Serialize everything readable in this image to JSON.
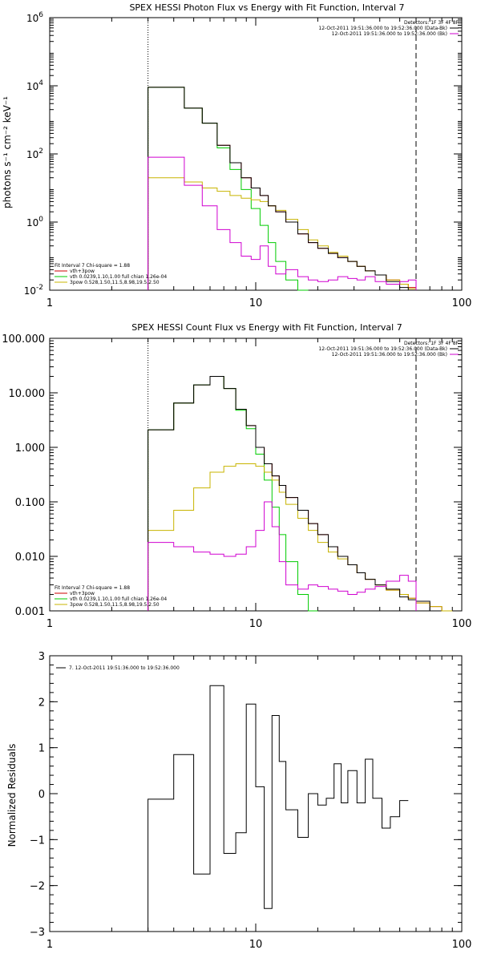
{
  "chart_data": [
    {
      "type": "line",
      "title": "SPEX HESSI Photon Flux vs Energy with Fit Function, Interval 7",
      "ylabel": "photons s⁻¹ cm⁻² keV⁻¹",
      "xlabel": "",
      "xscale": "log",
      "yscale": "log",
      "xlim": [
        1,
        100
      ],
      "ylim": [
        0.01,
        1000000
      ],
      "x_ticks": [
        {
          "value": 1,
          "label": "1"
        },
        {
          "value": 10,
          "label": "10"
        },
        {
          "value": 100,
          "label": "100"
        }
      ],
      "y_ticks": [
        {
          "value": 0.01,
          "base": "10",
          "exp": "-2"
        },
        {
          "value": 1,
          "base": "10",
          "exp": "0"
        },
        {
          "value": 100,
          "base": "10",
          "exp": "2"
        },
        {
          "value": 10000,
          "base": "10",
          "exp": "4"
        },
        {
          "value": 1000000,
          "base": "10",
          "exp": "6"
        }
      ],
      "vlines": [
        {
          "x": 3,
          "style": "dotted"
        },
        {
          "x": 60,
          "style": "dashed"
        }
      ],
      "legend_top": {
        "placement": "top-right",
        "header": "Detectors: 1F 3F 4F 8F",
        "entries": [
          {
            "label": "12-Oct-2011 19:51:36.000 to 19:52:36.000 (Data-Bk)",
            "color": "#000000"
          },
          {
            "label": "12-Oct-2011 19:51:36.000 to 19:52:36.000 (Bk)",
            "color": "#d000d0"
          }
        ]
      },
      "legend_fit": {
        "placement": "bottom-left",
        "header": "Fit Interval  7    Chi-square = 1.88",
        "entries": [
          {
            "label": "vth+3pow",
            "color": "#cc0000"
          },
          {
            "label": "vth 0.0239,1.10,1.00  full chian 1.26e-04",
            "color": "#00cc00"
          },
          {
            "label": "3pow 0.528,1.50,11.5,8.98,19.5,2.50",
            "color": "#c8b400"
          }
        ]
      },
      "edges": [
        3,
        3.5,
        4.5,
        5.5,
        6.5,
        7.5,
        8.5,
        9.5,
        10.5,
        11.5,
        12.5,
        14,
        16,
        18,
        20,
        22.5,
        25,
        28,
        31,
        34,
        38,
        43,
        50,
        55,
        60
      ],
      "series": [
        {
          "name": "vth+3pow",
          "color": "#cc0000",
          "values": [
            9000,
            9000,
            2200,
            800,
            180,
            55,
            20,
            10,
            6,
            3,
            2,
            1,
            0.45,
            0.25,
            0.17,
            0.12,
            0.09,
            0.07,
            0.05,
            0.037,
            0.028,
            0.02,
            0.015,
            0.012
          ]
        },
        {
          "name": "vth",
          "color": "#00cc00",
          "values": [
            9000,
            9000,
            2200,
            800,
            150,
            35,
            9,
            2.5,
            0.8,
            0.25,
            0.07,
            0.02,
            0.006
          ]
        },
        {
          "name": "3pow",
          "color": "#c8b400",
          "values": [
            20,
            20,
            15,
            10,
            8,
            6,
            5,
            4.5,
            4,
            3,
            2.2,
            1.2,
            0.6,
            0.3,
            0.2,
            0.13,
            0.1,
            0.07,
            0.05,
            0.037,
            0.028,
            0.02,
            0.015,
            0.011,
            0.0075
          ]
        },
        {
          "name": "Data-Bk",
          "color": "#000000",
          "values": [
            9000,
            9000,
            2200,
            800,
            180,
            55,
            20,
            10,
            6,
            3,
            2,
            1,
            0.45,
            0.25,
            0.17,
            0.12,
            0.09,
            0.07,
            0.05,
            0.037,
            0.028,
            0.018,
            0.012,
            0.009
          ]
        },
        {
          "name": "Bk",
          "color": "#d000d0",
          "values": [
            80,
            80,
            12,
            3,
            0.6,
            0.25,
            0.1,
            0.08,
            0.2,
            0.05,
            0.03,
            0.04,
            0.025,
            0.02,
            0.018,
            0.02,
            0.025,
            0.022,
            0.02,
            0.025,
            0.018,
            0.015,
            0.018,
            0.02
          ]
        }
      ]
    },
    {
      "type": "line",
      "title": "SPEX HESSI Count Flux vs Energy with Fit Function, Interval 7",
      "ylabel": "",
      "xlabel": "",
      "xscale": "log",
      "yscale": "log",
      "xlim": [
        1,
        100
      ],
      "ylim": [
        0.001,
        100
      ],
      "x_ticks": [
        {
          "value": 1,
          "label": "1"
        },
        {
          "value": 10,
          "label": "10"
        },
        {
          "value": 100,
          "label": "100"
        }
      ],
      "y_ticks": [
        {
          "value": 0.001,
          "label": "0.001"
        },
        {
          "value": 0.01,
          "label": "0.010"
        },
        {
          "value": 0.1,
          "label": "0.100"
        },
        {
          "value": 1,
          "label": "1.000"
        },
        {
          "value": 10,
          "label": "10.000"
        },
        {
          "value": 100,
          "label": "100.000"
        }
      ],
      "vlines": [
        {
          "x": 3,
          "style": "dotted"
        },
        {
          "x": 60,
          "style": "dashed"
        }
      ],
      "legend_top": {
        "placement": "top-right",
        "header": "Detectors: 1F 3F 4F 8F",
        "entries": [
          {
            "label": "12-Oct-2011 19:51:36.000 to 19:52:36.000 (Data-Bk)",
            "color": "#000000"
          },
          {
            "label": "12-Oct-2011 19:51:36.000 to 19:52:36.000 (Bk)",
            "color": "#d000d0"
          }
        ]
      },
      "legend_fit": {
        "placement": "bottom-left",
        "header": "Fit Interval  7    Chi-square = 1.88",
        "entries": [
          {
            "label": "vth+3pow",
            "color": "#cc0000"
          },
          {
            "label": "vth 0.0239,1.10,1.00  full chian 1.26e-04",
            "color": "#00cc00"
          },
          {
            "label": "3pow 0.528,1.50,11.5,8.98,19.5,2.50",
            "color": "#c8b400"
          }
        ]
      },
      "edges": [
        3,
        4,
        5,
        6,
        7,
        8,
        9,
        10,
        11,
        12,
        13,
        14,
        16,
        18,
        20,
        22.5,
        25,
        28,
        31,
        34,
        38,
        43,
        50,
        55,
        60,
        70,
        80,
        90
      ],
      "series": [
        {
          "name": "vth+3pow",
          "color": "#cc0000",
          "values": [
            2.1,
            6.5,
            14,
            20,
            12,
            5,
            2.5,
            1,
            0.5,
            0.3,
            0.2,
            0.12,
            0.07,
            0.04,
            0.025,
            0.015,
            0.01,
            0.007,
            0.005,
            0.0038,
            0.003,
            0.0024,
            0.002,
            0.0017,
            0.0014,
            0.0012,
            0.001
          ]
        },
        {
          "name": "vth",
          "color": "#00cc00",
          "values": [
            2.1,
            6.5,
            14,
            20,
            12,
            4.8,
            2.2,
            0.75,
            0.25,
            0.08,
            0.025,
            0.008,
            0.002,
            0.0005
          ]
        },
        {
          "name": "3pow",
          "color": "#c8b400",
          "values": [
            0.03,
            0.07,
            0.18,
            0.35,
            0.45,
            0.5,
            0.5,
            0.45,
            0.35,
            0.25,
            0.15,
            0.09,
            0.05,
            0.03,
            0.018,
            0.012,
            0.009,
            0.007,
            0.005,
            0.0038,
            0.003,
            0.0024,
            0.002,
            0.0017,
            0.0014,
            0.0012,
            0.001
          ]
        },
        {
          "name": "Data-Bk",
          "color": "#000000",
          "values": [
            2.1,
            6.5,
            14,
            20,
            12,
            5,
            2.5,
            1,
            0.5,
            0.3,
            0.2,
            0.12,
            0.07,
            0.04,
            0.025,
            0.015,
            0.01,
            0.007,
            0.005,
            0.0038,
            0.003,
            0.0025,
            0.0018,
            0.0016,
            0.0015
          ]
        },
        {
          "name": "Bk",
          "color": "#d000d0",
          "values": [
            0.018,
            0.015,
            0.012,
            0.011,
            0.01,
            0.011,
            0.015,
            0.03,
            0.1,
            0.035,
            0.008,
            0.003,
            0.0025,
            0.003,
            0.0028,
            0.0025,
            0.0023,
            0.002,
            0.0022,
            0.0025,
            0.0028,
            0.0035,
            0.0045,
            0.0035
          ]
        }
      ]
    },
    {
      "type": "line",
      "title": "",
      "ylabel": "Normalized Residuals",
      "xlabel": "",
      "xscale": "log",
      "yscale": "linear",
      "xlim": [
        1,
        100
      ],
      "ylim": [
        -3,
        3
      ],
      "x_ticks": [
        {
          "value": 1,
          "label": "1"
        },
        {
          "value": 10,
          "label": "10"
        },
        {
          "value": 100,
          "label": "100"
        }
      ],
      "y_ticks": [
        {
          "value": -3,
          "label": "−3"
        },
        {
          "value": -2,
          "label": "−2"
        },
        {
          "value": -1,
          "label": "−1"
        },
        {
          "value": 0,
          "label": "0"
        },
        {
          "value": 1,
          "label": "1"
        },
        {
          "value": 2,
          "label": "2"
        },
        {
          "value": 3,
          "label": "3"
        }
      ],
      "legend": {
        "placement": "top-left",
        "entries": [
          {
            "label": "7. 12-Oct-2011 19:51:36.000 to 19:52:36.000",
            "color": "#000000"
          }
        ]
      },
      "edges": [
        3,
        4,
        5,
        6,
        7,
        8,
        9,
        10,
        11,
        12,
        13,
        14,
        16,
        18,
        20,
        22,
        24,
        26,
        28,
        31,
        34,
        37,
        41,
        45,
        50,
        55,
        60
      ],
      "series": [
        {
          "name": "7. 12-Oct-2011 19:51:36.000 to 19:52:36.000",
          "color": "#000000",
          "start": -3,
          "values": [
            -0.12,
            0.85,
            -1.75,
            2.35,
            -1.3,
            -0.85,
            1.95,
            0.15,
            -2.5,
            1.7,
            0.7,
            -0.35,
            -0.95,
            0,
            -0.25,
            -0.1,
            0.65,
            -0.2,
            0.5,
            -0.2,
            0.75,
            -0.1,
            -0.75,
            -0.5,
            -0.15
          ]
        }
      ]
    }
  ]
}
